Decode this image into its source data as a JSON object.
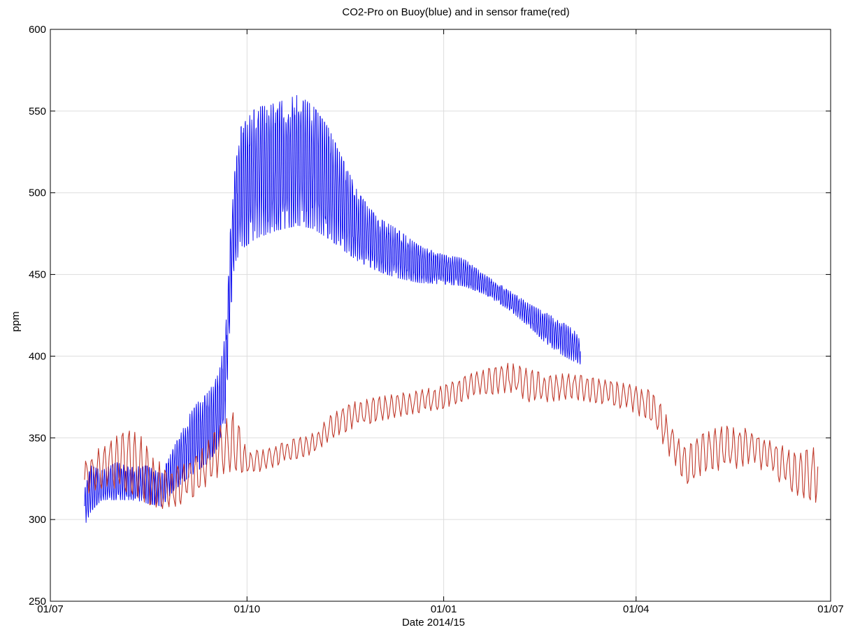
{
  "chart_data": {
    "type": "line",
    "title": "CO2-Pro on Buoy(blue) and in sensor frame(red)",
    "xlabel": "Date 2014/15",
    "ylabel": "ppm",
    "xlim": [
      "2014-07-01",
      "2015-07-01"
    ],
    "ylim": [
      250,
      600
    ],
    "x_ticks": [
      "2014-07-01",
      "2014-10-01",
      "2015-01-01",
      "2015-04-01",
      "2015-07-01"
    ],
    "x_tick_labels": [
      "01/07",
      "01/10",
      "01/01",
      "01/04",
      "01/07"
    ],
    "y_ticks": [
      250,
      300,
      350,
      400,
      450,
      500,
      550,
      600
    ],
    "y_tick_labels": [
      "250",
      "300",
      "350",
      "400",
      "450",
      "500",
      "550",
      "600"
    ],
    "grid": true,
    "series": [
      {
        "color": "#0000ee",
        "x": [
          "2014-07-17",
          "2014-07-20",
          "2014-07-25",
          "2014-08-01",
          "2014-08-08",
          "2014-08-15",
          "2014-08-22",
          "2014-08-28",
          "2014-09-03",
          "2014-09-08",
          "2014-09-13",
          "2014-09-18",
          "2014-09-21",
          "2014-09-23",
          "2014-09-25",
          "2014-09-28",
          "2014-10-05",
          "2014-10-15",
          "2014-10-25",
          "2014-11-01",
          "2014-11-08",
          "2014-11-15",
          "2014-11-22",
          "2014-12-01",
          "2014-12-10",
          "2014-12-20",
          "2015-01-01",
          "2015-01-10",
          "2015-01-20",
          "2015-02-01",
          "2015-02-10",
          "2015-02-20",
          "2015-03-01",
          "2015-03-06"
        ],
        "low": [
          296,
          305,
          312,
          312,
          312,
          310,
          308,
          318,
          325,
          330,
          335,
          345,
          360,
          420,
          455,
          465,
          472,
          477,
          480,
          478,
          472,
          465,
          458,
          452,
          448,
          445,
          444,
          443,
          438,
          428,
          418,
          405,
          398,
          395
        ],
        "high": [
          318,
          333,
          330,
          335,
          332,
          333,
          328,
          345,
          362,
          372,
          378,
          390,
          415,
          475,
          510,
          540,
          552,
          555,
          560,
          553,
          540,
          520,
          500,
          485,
          478,
          468,
          462,
          460,
          450,
          440,
          432,
          425,
          418,
          412
        ]
      },
      {
        "color": "#c0392b",
        "x": [
          "2014-07-17",
          "2014-07-22",
          "2014-07-28",
          "2014-08-05",
          "2014-08-12",
          "2014-08-18",
          "2014-08-25",
          "2014-09-01",
          "2014-09-08",
          "2014-09-15",
          "2014-09-20",
          "2014-09-25",
          "2014-10-01",
          "2014-10-10",
          "2014-10-20",
          "2014-11-01",
          "2014-11-10",
          "2014-11-20",
          "2014-12-01",
          "2014-12-15",
          "2015-01-01",
          "2015-01-15",
          "2015-02-01",
          "2015-02-10",
          "2015-02-20",
          "2015-03-01",
          "2015-03-10",
          "2015-03-20",
          "2015-04-01",
          "2015-04-10",
          "2015-04-18",
          "2015-04-25",
          "2015-05-05",
          "2015-05-15",
          "2015-05-25",
          "2015-06-05",
          "2015-06-15",
          "2015-06-25"
        ],
        "low": [
          315,
          318,
          320,
          315,
          312,
          308,
          306,
          310,
          316,
          322,
          328,
          330,
          328,
          330,
          336,
          340,
          350,
          356,
          360,
          364,
          368,
          375,
          378,
          372,
          372,
          374,
          372,
          370,
          365,
          355,
          335,
          322,
          330,
          330,
          334,
          325,
          315,
          310
        ],
        "high": [
          336,
          342,
          348,
          356,
          352,
          338,
          332,
          334,
          340,
          352,
          360,
          366,
          342,
          343,
          348,
          353,
          365,
          372,
          375,
          378,
          382,
          390,
          396,
          392,
          388,
          390,
          387,
          385,
          382,
          378,
          356,
          345,
          355,
          358,
          355,
          348,
          340,
          345
        ]
      }
    ]
  }
}
